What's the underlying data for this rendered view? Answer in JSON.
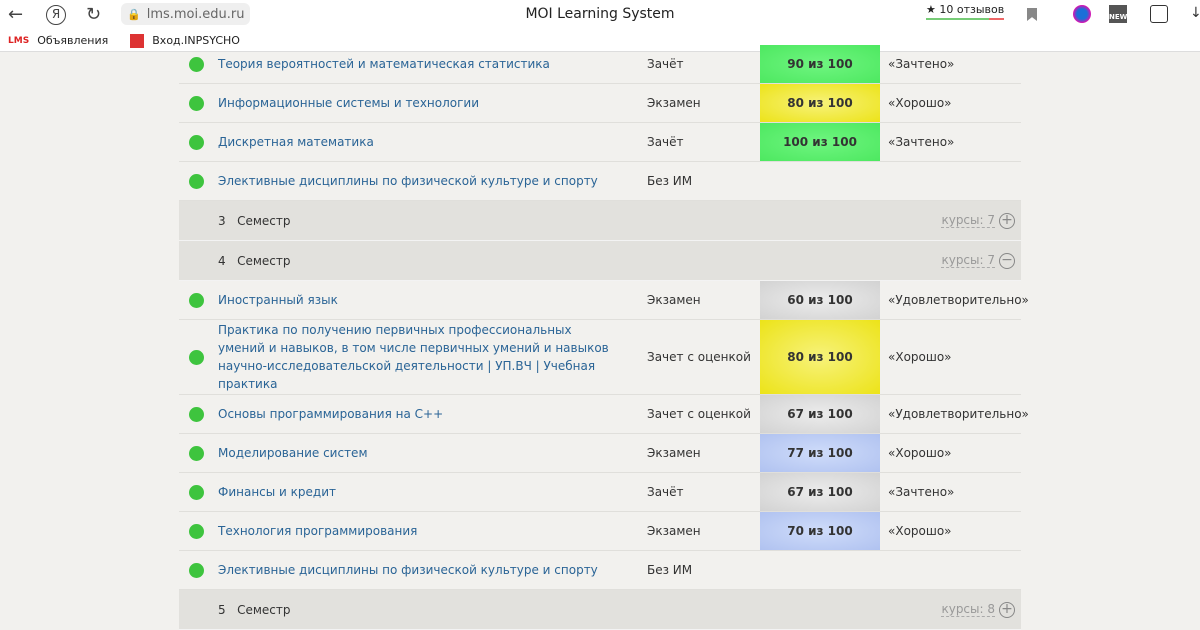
{
  "browser": {
    "url": "lms.moi.edu.ru",
    "title": "MOI Learning System",
    "reviews": "★ 10 отзывов",
    "bookmarks": [
      {
        "label": "Объявления",
        "icon": "LMS"
      },
      {
        "label": "Вход.INPSYCHO",
        "icon": "inpsycho-logo"
      }
    ]
  },
  "colors": {
    "green": "#52ec6a",
    "yellow": "#f2ec3a",
    "gray": "#dcdcdc",
    "blue": "#b8c8f2",
    "dot": "#3ec43e"
  },
  "rows": [
    {
      "kind": "course",
      "name": "Теория вероятностей и математическая статистика",
      "type": "Зачёт",
      "grade": "90 из 100",
      "result": "«Зачтено»",
      "color": "green"
    },
    {
      "kind": "course",
      "name": "Информационные системы и технологии",
      "type": "Экзамен",
      "grade": "80 из 100",
      "result": "«Хорошо»",
      "color": "yellow"
    },
    {
      "kind": "course",
      "name": "Дискретная математика",
      "type": "Зачёт",
      "grade": "100 из 100",
      "result": "«Зачтено»",
      "color": "green"
    },
    {
      "kind": "course",
      "name": "Элективные дисциплины по физической культуре и спорту",
      "type": "Без ИМ"
    },
    {
      "kind": "semester",
      "num": "3",
      "label": "Семестр",
      "count": "курсы: 7",
      "expanded": false
    },
    {
      "kind": "semester",
      "num": "4",
      "label": "Семестр",
      "count": "курсы: 7",
      "expanded": true
    },
    {
      "kind": "course",
      "name": "Иностранный язык",
      "type": "Экзамен",
      "grade": "60 из 100",
      "result": "«Удовлетворительно»",
      "color": "gray"
    },
    {
      "kind": "course",
      "tall": true,
      "name": "Практика по получению первичных профессиональных умений и навыков, в том числе первичных умений и навыков научно-исследовательской деятельности | УП.ВЧ | Учебная практика",
      "type": "Зачет с оценкой",
      "grade": "80 из 100",
      "result": "«Хорошо»",
      "color": "yellow"
    },
    {
      "kind": "course",
      "name": "Основы программирования на С++",
      "type": "Зачет с оценкой",
      "grade": "67 из 100",
      "result": "«Удовлетворительно»",
      "color": "gray"
    },
    {
      "kind": "course",
      "name": "Моделирование систем",
      "type": "Экзамен",
      "grade": "77 из 100",
      "result": "«Хорошо»",
      "color": "blue"
    },
    {
      "kind": "course",
      "name": "Финансы и кредит",
      "type": "Зачёт",
      "grade": "67 из 100",
      "result": "«Зачтено»",
      "color": "gray"
    },
    {
      "kind": "course",
      "name": "Технология программирования",
      "type": "Экзамен",
      "grade": "70 из 100",
      "result": "«Хорошо»",
      "color": "blue"
    },
    {
      "kind": "course",
      "name": "Элективные дисциплины по физической культуре и спорту",
      "type": "Без ИМ"
    },
    {
      "kind": "semester",
      "num": "5",
      "label": "Семестр",
      "count": "курсы: 8",
      "expanded": false
    }
  ]
}
